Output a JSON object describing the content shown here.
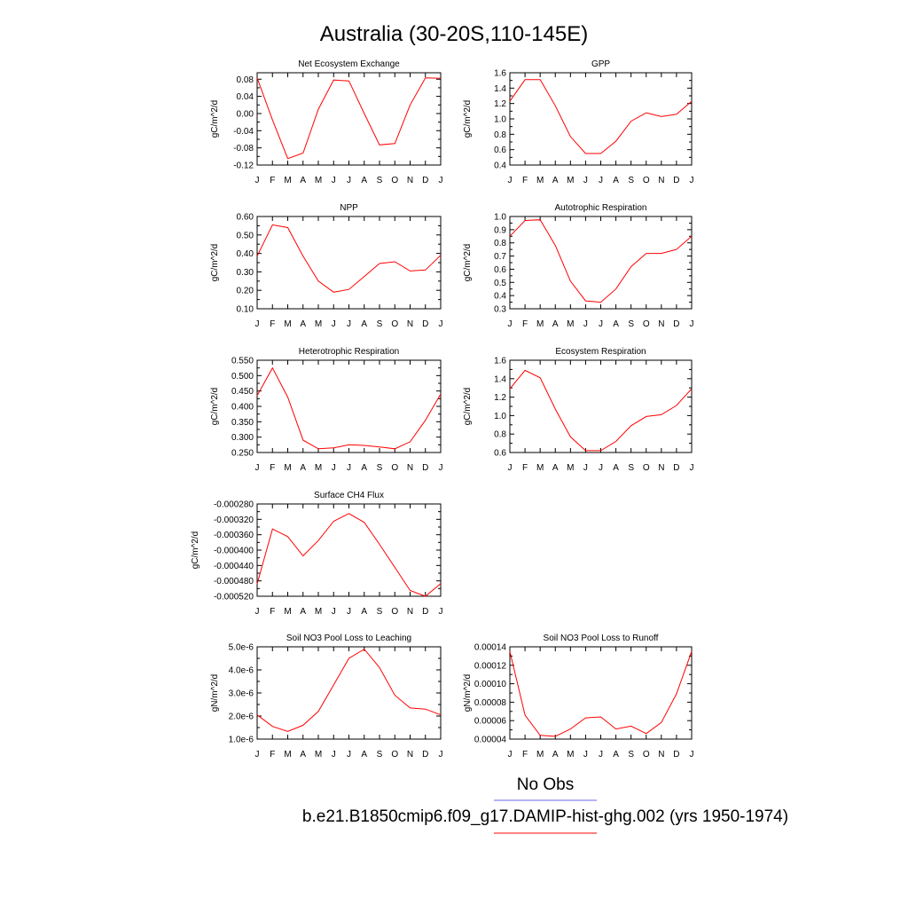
{
  "page": {
    "title": "Australia (30-20S,110-145E)",
    "legend": [
      {
        "label": "No Obs",
        "color": "#6a6aee"
      },
      {
        "label": "b.e21.B1850cmip6.f09_g17.DAMIP-hist-ghg.002 (yrs 1950-1974)",
        "color": "#ff0000"
      }
    ]
  },
  "chart_data": [
    {
      "type": "line",
      "title": "Net Ecosystem Exchange",
      "xlabel": "",
      "ylabel": "gC/m^2/d",
      "x": [
        "J",
        "F",
        "M",
        "A",
        "M",
        "J",
        "J",
        "A",
        "S",
        "O",
        "N",
        "D",
        "J"
      ],
      "ylim": [
        -0.12,
        0.095
      ],
      "yticks": [
        -0.12,
        -0.08,
        -0.04,
        0.0,
        0.04,
        0.08
      ],
      "ytick_labels": [
        "-0.12",
        "-0.08",
        "-0.04",
        "0.00",
        "0.04",
        "0.08"
      ],
      "grid": false,
      "series": [
        {
          "color": "#ff0000",
          "values": [
            0.083,
            -0.015,
            -0.105,
            -0.092,
            0.01,
            0.078,
            0.076,
            0.0,
            -0.073,
            -0.07,
            0.02,
            0.083,
            0.082
          ]
        }
      ]
    },
    {
      "type": "line",
      "title": "GPP",
      "xlabel": "",
      "ylabel": "gC/m^2/d",
      "x": [
        "J",
        "F",
        "M",
        "A",
        "M",
        "J",
        "J",
        "A",
        "S",
        "O",
        "N",
        "D",
        "J"
      ],
      "ylim": [
        0.4,
        1.6
      ],
      "yticks": [
        0.4,
        0.6,
        0.8,
        1.0,
        1.2,
        1.4,
        1.6
      ],
      "ytick_labels": [
        "0.4",
        "0.6",
        "0.8",
        "1.0",
        "1.2",
        "1.4",
        "1.6"
      ],
      "grid": false,
      "series": [
        {
          "color": "#ff0000",
          "values": [
            1.23,
            1.51,
            1.51,
            1.17,
            0.77,
            0.55,
            0.55,
            0.71,
            0.97,
            1.08,
            1.03,
            1.06,
            1.23
          ]
        }
      ]
    },
    {
      "type": "line",
      "title": "NPP",
      "xlabel": "",
      "ylabel": "gC/m^2/d",
      "x": [
        "J",
        "F",
        "M",
        "A",
        "M",
        "J",
        "J",
        "A",
        "S",
        "O",
        "N",
        "D",
        "J"
      ],
      "ylim": [
        0.1,
        0.6
      ],
      "yticks": [
        0.1,
        0.2,
        0.3,
        0.4,
        0.5,
        0.6
      ],
      "ytick_labels": [
        "0.10",
        "0.20",
        "0.30",
        "0.40",
        "0.50",
        "0.60"
      ],
      "grid": false,
      "series": [
        {
          "color": "#ff0000",
          "values": [
            0.385,
            0.555,
            0.54,
            0.385,
            0.25,
            0.19,
            0.205,
            0.275,
            0.345,
            0.355,
            0.305,
            0.31,
            0.39
          ]
        }
      ]
    },
    {
      "type": "line",
      "title": "Autotrophic Respiration",
      "xlabel": "",
      "ylabel": "gC/m^2/d",
      "x": [
        "J",
        "F",
        "M",
        "A",
        "M",
        "J",
        "J",
        "A",
        "S",
        "O",
        "N",
        "D",
        "J"
      ],
      "ylim": [
        0.3,
        1.0
      ],
      "yticks": [
        0.3,
        0.4,
        0.5,
        0.6,
        0.7,
        0.8,
        0.9,
        1.0
      ],
      "ytick_labels": [
        "0.3",
        "0.4",
        "0.5",
        "0.6",
        "0.7",
        "0.8",
        "0.9",
        "1.0"
      ],
      "grid": false,
      "series": [
        {
          "color": "#ff0000",
          "values": [
            0.85,
            0.97,
            0.975,
            0.78,
            0.51,
            0.36,
            0.35,
            0.45,
            0.62,
            0.72,
            0.72,
            0.75,
            0.85
          ]
        }
      ]
    },
    {
      "type": "line",
      "title": "Heterotrophic Respiration",
      "xlabel": "",
      "ylabel": "gC/m^2/d",
      "x": [
        "J",
        "F",
        "M",
        "A",
        "M",
        "J",
        "J",
        "A",
        "S",
        "O",
        "N",
        "D",
        "J"
      ],
      "ylim": [
        0.25,
        0.55
      ],
      "yticks": [
        0.25,
        0.3,
        0.35,
        0.4,
        0.45,
        0.5,
        0.55
      ],
      "ytick_labels": [
        "0.250",
        "0.300",
        "0.350",
        "0.400",
        "0.450",
        "0.500",
        "0.550"
      ],
      "grid": false,
      "series": [
        {
          "color": "#ff0000",
          "values": [
            0.435,
            0.525,
            0.43,
            0.29,
            0.262,
            0.265,
            0.275,
            0.273,
            0.268,
            0.262,
            0.285,
            0.355,
            0.44
          ]
        }
      ]
    },
    {
      "type": "line",
      "title": "Ecosystem Respiration",
      "xlabel": "",
      "ylabel": "gC/m^2/d",
      "x": [
        "J",
        "F",
        "M",
        "A",
        "M",
        "J",
        "J",
        "A",
        "S",
        "O",
        "N",
        "D",
        "J"
      ],
      "ylim": [
        0.6,
        1.6
      ],
      "yticks": [
        0.6,
        0.8,
        1.0,
        1.2,
        1.4,
        1.6
      ],
      "ytick_labels": [
        "0.6",
        "0.8",
        "1.0",
        "1.2",
        "1.4",
        "1.6"
      ],
      "grid": false,
      "series": [
        {
          "color": "#ff0000",
          "values": [
            1.29,
            1.49,
            1.41,
            1.07,
            0.77,
            0.62,
            0.62,
            0.72,
            0.89,
            0.99,
            1.01,
            1.11,
            1.29
          ]
        }
      ]
    },
    {
      "type": "line",
      "title": "Surface CH4 Flux",
      "xlabel": "",
      "ylabel": "gC/m^2/d",
      "x": [
        "J",
        "F",
        "M",
        "A",
        "M",
        "J",
        "J",
        "A",
        "S",
        "O",
        "N",
        "D",
        "J"
      ],
      "ylim": [
        -0.00052,
        -0.00028
      ],
      "yticks": [
        -0.00052,
        -0.00048,
        -0.00044,
        -0.0004,
        -0.00036,
        -0.00032,
        -0.00028
      ],
      "ytick_labels": [
        "-0.000520",
        "-0.000480",
        "-0.000440",
        "-0.000400",
        "-0.000360",
        "-0.000320",
        "-0.000280"
      ],
      "grid": false,
      "series": [
        {
          "color": "#ff0000",
          "values": [
            -0.000488,
            -0.000345,
            -0.000365,
            -0.000415,
            -0.000375,
            -0.000325,
            -0.000305,
            -0.000328,
            -0.000385,
            -0.000445,
            -0.000505,
            -0.00052,
            -0.000487
          ]
        }
      ]
    },
    {
      "type": "line",
      "title": "Soil NO3 Pool Loss to Leaching",
      "xlabel": "",
      "ylabel": "gN/m^2/d",
      "x": [
        "J",
        "F",
        "M",
        "A",
        "M",
        "J",
        "J",
        "A",
        "S",
        "O",
        "N",
        "D",
        "J"
      ],
      "ylim": [
        1e-06,
        5e-06
      ],
      "yticks": [
        1e-06,
        2e-06,
        3e-06,
        4e-06,
        5e-06
      ],
      "ytick_labels": [
        "1.0e-6",
        "2.0e-6",
        "3.0e-6",
        "4.0e-6",
        "5.0e-6"
      ],
      "grid": false,
      "series": [
        {
          "color": "#ff0000",
          "values": [
            2.05e-06,
            1.55e-06,
            1.33e-06,
            1.6e-06,
            2.2e-06,
            3.35e-06,
            4.5e-06,
            4.9e-06,
            4.1e-06,
            2.9e-06,
            2.35e-06,
            2.3e-06,
            2.05e-06
          ]
        }
      ]
    },
    {
      "type": "line",
      "title": "Soil NO3 Pool Loss to Runoff",
      "xlabel": "",
      "ylabel": "gN/m^2/d",
      "x": [
        "J",
        "F",
        "M",
        "A",
        "M",
        "J",
        "J",
        "A",
        "S",
        "O",
        "N",
        "D",
        "J"
      ],
      "ylim": [
        4e-05,
        0.00014
      ],
      "yticks": [
        4e-05,
        6e-05,
        8e-05,
        0.0001,
        0.00012,
        0.00014
      ],
      "ytick_labels": [
        "0.00004",
        "0.00006",
        "0.00008",
        "0.00010",
        "0.00012",
        "0.00014"
      ],
      "grid": false,
      "series": [
        {
          "color": "#ff0000",
          "values": [
            0.000135,
            6.6e-05,
            4.4e-05,
            4.3e-05,
            5.1e-05,
            6.3e-05,
            6.4e-05,
            5.1e-05,
            5.4e-05,
            4.6e-05,
            5.8e-05,
            8.9e-05,
            0.000135
          ]
        }
      ]
    }
  ]
}
